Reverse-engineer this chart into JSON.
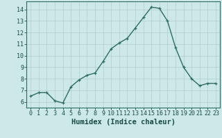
{
  "x": [
    0,
    1,
    2,
    3,
    4,
    5,
    6,
    7,
    8,
    9,
    10,
    11,
    12,
    13,
    14,
    15,
    16,
    17,
    18,
    19,
    20,
    21,
    22,
    23
  ],
  "y": [
    6.5,
    6.8,
    6.8,
    6.1,
    5.9,
    7.3,
    7.9,
    8.3,
    8.5,
    9.5,
    10.6,
    11.1,
    11.5,
    12.4,
    13.3,
    14.2,
    14.1,
    13.0,
    10.7,
    9.0,
    8.0,
    7.4,
    7.6,
    7.6
  ],
  "line_color": "#2e6b5e",
  "marker": "+",
  "marker_size": 3,
  "bg_color": "#cce8e8",
  "grid_color": "#b0cccc",
  "xlabel": "Humidex (Indice chaleur)",
  "xlim": [
    -0.5,
    23.5
  ],
  "ylim": [
    5.5,
    14.7
  ],
  "yticks": [
    6,
    7,
    8,
    9,
    10,
    11,
    12,
    13,
    14
  ],
  "xticks": [
    0,
    1,
    2,
    3,
    4,
    5,
    6,
    7,
    8,
    9,
    10,
    11,
    12,
    13,
    14,
    15,
    16,
    17,
    18,
    19,
    20,
    21,
    22,
    23
  ],
  "tick_color": "#1a4a40",
  "label_fontsize": 6.0,
  "xlabel_fontsize": 7.5,
  "axis_color": "#2e6b5e",
  "linewidth": 1.0,
  "markeredgewidth": 0.9
}
